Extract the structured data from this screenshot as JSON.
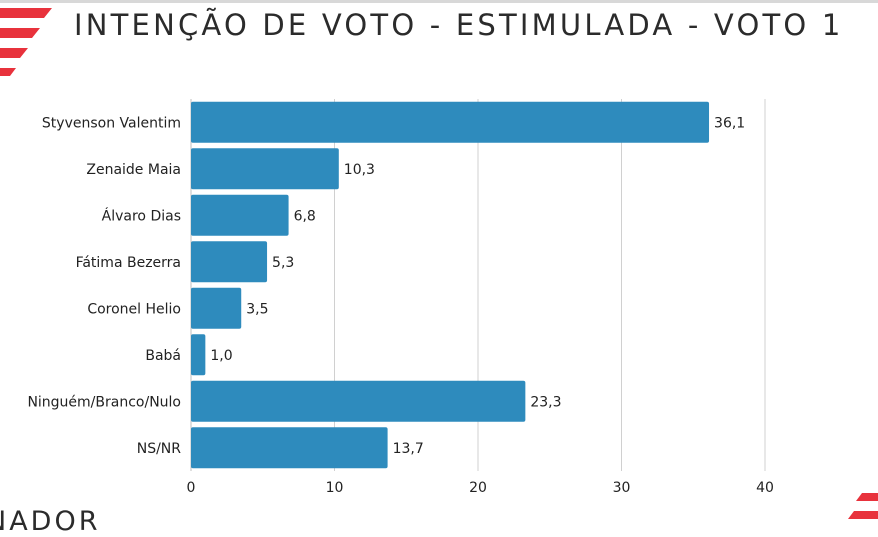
{
  "page": {
    "title": "INTENÇÃO DE VOTO - ESTIMULADA - VOTO 1",
    "subtitle": "NADOR"
  },
  "colors": {
    "bar": "#2e8bbd",
    "grid": "#d0d0d0",
    "accent": "#e8323c"
  },
  "chart_data": {
    "type": "bar",
    "orientation": "horizontal",
    "title": "INTENÇÃO DE VOTO - ESTIMULADA - VOTO 1",
    "xlabel": "",
    "ylabel": "",
    "categories": [
      "Styvenson Valentim",
      "Zenaide Maia",
      "Álvaro Dias",
      "Fátima Bezerra",
      "Coronel Helio",
      "Babá",
      "Ninguém/Branco/Nulo",
      "NS/NR"
    ],
    "values": [
      36.1,
      10.3,
      6.8,
      5.3,
      3.5,
      1.0,
      23.3,
      13.7
    ],
    "value_labels": [
      "36,1",
      "10,3",
      "6,8",
      "5,3",
      "3,5",
      "1,0",
      "23,3",
      "13,7"
    ],
    "xlim": [
      0,
      40
    ],
    "xticks": [
      0,
      10,
      20,
      30,
      40
    ],
    "grid": true,
    "legend": "none"
  }
}
